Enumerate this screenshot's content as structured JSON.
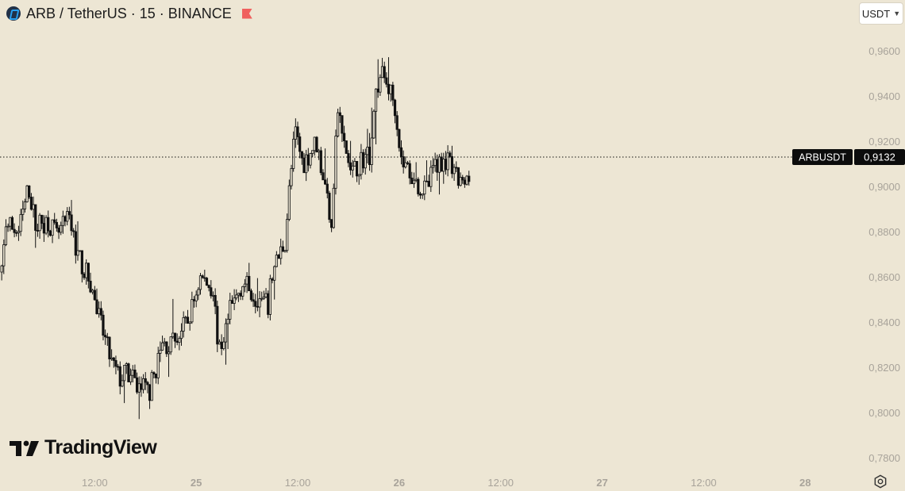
{
  "header": {
    "symbol_title": "ARB / TetherUS · 15 · BINANCE",
    "coin_icon": "arbitrum-coin-icon",
    "flag_icon": "red-flag-icon"
  },
  "currency_selector": {
    "label": "USDT"
  },
  "brand": {
    "logo_text": "TradingView"
  },
  "colors": {
    "background": "#EDE6D4",
    "candles": "#111111",
    "axis_text": "#A8A39A"
  },
  "chart_data": {
    "type": "candlestick",
    "symbol": "ARBUSDT",
    "interval": "15",
    "exchange": "BINANCE",
    "last_price_label": {
      "name": "ARBUSDT",
      "value": "0,9132"
    },
    "last_price": 0.9132,
    "ylim": [
      0.775,
      0.97
    ],
    "y_ticks": [
      {
        "value": 0.96,
        "label": "0,9600"
      },
      {
        "value": 0.94,
        "label": "0,9400"
      },
      {
        "value": 0.92,
        "label": "0,9200"
      },
      {
        "value": 0.9,
        "label": "0,9000"
      },
      {
        "value": 0.88,
        "label": "0,8800"
      },
      {
        "value": 0.86,
        "label": "0,8600"
      },
      {
        "value": 0.84,
        "label": "0,8400"
      },
      {
        "value": 0.82,
        "label": "0,8200"
      },
      {
        "value": 0.8,
        "label": "0,8000"
      },
      {
        "value": 0.78,
        "label": "0,7800"
      }
    ],
    "x_ticks": [
      {
        "t": 12,
        "label": "12:00",
        "bold": false
      },
      {
        "t": 24,
        "label": "25",
        "bold": true
      },
      {
        "t": 36,
        "label": "12:00",
        "bold": false
      },
      {
        "t": 48,
        "label": "26",
        "bold": true
      },
      {
        "t": 60,
        "label": "12:00",
        "bold": false
      },
      {
        "t": 72,
        "label": "27",
        "bold": true
      },
      {
        "t": 84,
        "label": "12:00",
        "bold": false
      },
      {
        "t": 96,
        "label": "28",
        "bold": true
      }
    ],
    "x_range_hours": [
      0.8,
      101.8
    ],
    "anchors": [
      [
        0,
        0.855
      ],
      [
        1,
        0.862
      ],
      [
        1.5,
        0.884
      ],
      [
        3,
        0.88
      ],
      [
        4.2,
        0.9
      ],
      [
        5,
        0.883
      ],
      [
        6.5,
        0.885
      ],
      [
        7.5,
        0.878
      ],
      [
        9,
        0.886
      ],
      [
        10,
        0.87
      ],
      [
        11.5,
        0.857
      ],
      [
        12.5,
        0.842
      ],
      [
        14,
        0.822
      ],
      [
        15,
        0.815
      ],
      [
        15.8,
        0.818
      ],
      [
        17,
        0.812
      ],
      [
        18.5,
        0.81
      ],
      [
        20,
        0.83
      ],
      [
        21,
        0.83
      ],
      [
        23,
        0.84
      ],
      [
        24.5,
        0.86
      ],
      [
        26,
        0.855
      ],
      [
        26.7,
        0.826
      ],
      [
        28,
        0.845
      ],
      [
        29.5,
        0.858
      ],
      [
        31,
        0.852
      ],
      [
        32.5,
        0.847
      ],
      [
        33,
        0.862
      ],
      [
        34.5,
        0.876
      ],
      [
        35,
        0.898
      ],
      [
        35.7,
        0.925
      ],
      [
        36.6,
        0.91
      ],
      [
        38.2,
        0.92
      ],
      [
        39,
        0.905
      ],
      [
        40,
        0.885
      ],
      [
        40.7,
        0.935
      ],
      [
        41.5,
        0.918
      ],
      [
        42.4,
        0.905
      ],
      [
        43.5,
        0.912
      ],
      [
        44.6,
        0.915
      ],
      [
        45.1,
        0.94
      ],
      [
        46,
        0.95
      ],
      [
        46.7,
        0.945
      ],
      [
        47.6,
        0.935
      ],
      [
        48.2,
        0.912
      ],
      [
        49.4,
        0.906
      ],
      [
        50.4,
        0.9
      ],
      [
        51.2,
        0.898
      ],
      [
        52.2,
        0.91
      ],
      [
        53.5,
        0.912
      ],
      [
        54.5,
        0.905
      ],
      [
        55.5,
        0.9
      ],
      [
        56.4,
        0.904
      ]
    ]
  }
}
